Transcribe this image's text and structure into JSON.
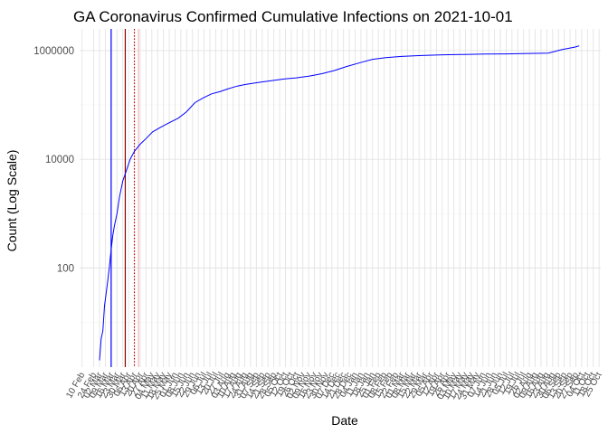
{
  "chart_data": {
    "type": "line",
    "title": "GA Coronavirus Confirmed Cumulative Infections on 2021-10-01",
    "xlabel": "Date",
    "ylabel": "Count (Log Scale)",
    "y_scale": "log10",
    "ylim": [
      1.5,
      2500000
    ],
    "y_ticks": [
      {
        "value": 100,
        "label": "100"
      },
      {
        "value": 10000,
        "label": "10000"
      },
      {
        "value": 1000000,
        "label": "1000000"
      }
    ],
    "xlim": [
      "2020-02-07",
      "2021-10-27"
    ],
    "x_ticks": [
      {
        "date": "2020-02-10",
        "label": "10 Feb"
      },
      {
        "date": "2020-02-24",
        "label": "24 Feb"
      },
      {
        "date": "2020-03-02",
        "label": "02 Mar"
      },
      {
        "date": "2020-03-09",
        "label": "09 Mar"
      },
      {
        "date": "2020-03-16",
        "label": "16 Mar"
      },
      {
        "date": "2020-03-23",
        "label": "23 Mar"
      },
      {
        "date": "2020-03-30",
        "label": "30 Mar"
      },
      {
        "date": "2020-04-06",
        "label": "06 Apr"
      },
      {
        "date": "2020-04-13",
        "label": "13 Apr"
      },
      {
        "date": "2020-04-20",
        "label": "20 Apr"
      },
      {
        "date": "2020-04-27",
        "label": "27 Apr"
      },
      {
        "date": "2020-05-04",
        "label": "04 May"
      },
      {
        "date": "2020-05-11",
        "label": "11 May"
      },
      {
        "date": "2020-05-18",
        "label": "18 May"
      },
      {
        "date": "2020-05-25",
        "label": "25 May"
      },
      {
        "date": "2020-06-01",
        "label": "01 Jun"
      },
      {
        "date": "2020-06-08",
        "label": "08 Jun"
      },
      {
        "date": "2020-06-15",
        "label": "15 Jun"
      },
      {
        "date": "2020-06-22",
        "label": "22 Jun"
      },
      {
        "date": "2020-06-29",
        "label": "29 Jun"
      },
      {
        "date": "2020-07-06",
        "label": "06 Jul"
      },
      {
        "date": "2020-07-13",
        "label": "13 Jul"
      },
      {
        "date": "2020-07-20",
        "label": "20 Jul"
      },
      {
        "date": "2020-07-27",
        "label": "27 Jul"
      },
      {
        "date": "2020-08-03",
        "label": "03 Aug"
      },
      {
        "date": "2020-08-10",
        "label": "10 Aug"
      },
      {
        "date": "2020-08-17",
        "label": "17 Aug"
      },
      {
        "date": "2020-08-24",
        "label": "24 Aug"
      },
      {
        "date": "2020-08-31",
        "label": "31 Aug"
      },
      {
        "date": "2020-09-07",
        "label": "07 Sep"
      },
      {
        "date": "2020-09-14",
        "label": "14 Sep"
      },
      {
        "date": "2020-09-21",
        "label": "21 Sep"
      },
      {
        "date": "2020-09-28",
        "label": "28 Sep"
      },
      {
        "date": "2020-10-05",
        "label": "05 Oct"
      },
      {
        "date": "2020-10-12",
        "label": "12 Oct"
      },
      {
        "date": "2020-10-19",
        "label": "19 Oct"
      },
      {
        "date": "2020-10-26",
        "label": "26 Oct"
      },
      {
        "date": "2020-11-02",
        "label": "02 Nov"
      },
      {
        "date": "2020-11-09",
        "label": "09 Nov"
      },
      {
        "date": "2020-11-16",
        "label": "16 Nov"
      },
      {
        "date": "2020-11-23",
        "label": "23 Nov"
      },
      {
        "date": "2020-11-30",
        "label": "30 Nov"
      },
      {
        "date": "2020-12-07",
        "label": "07 Dec"
      },
      {
        "date": "2020-12-14",
        "label": "14 Dec"
      },
      {
        "date": "2020-12-21",
        "label": "21 Dec"
      },
      {
        "date": "2020-12-28",
        "label": "28 Dec"
      },
      {
        "date": "2021-01-04",
        "label": "04 Jan"
      },
      {
        "date": "2021-01-11",
        "label": "11 Jan"
      },
      {
        "date": "2021-01-18",
        "label": "18 Jan"
      },
      {
        "date": "2021-01-25",
        "label": "25 Jan"
      },
      {
        "date": "2021-02-01",
        "label": "01 Feb"
      },
      {
        "date": "2021-02-08",
        "label": "08 Feb"
      },
      {
        "date": "2021-02-15",
        "label": "15 Feb"
      },
      {
        "date": "2021-02-22",
        "label": "22 Feb"
      },
      {
        "date": "2021-03-01",
        "label": "01 Mar"
      },
      {
        "date": "2021-03-08",
        "label": "08 Mar"
      },
      {
        "date": "2021-03-15",
        "label": "15 Mar"
      },
      {
        "date": "2021-03-22",
        "label": "22 Mar"
      },
      {
        "date": "2021-03-29",
        "label": "29 Mar"
      },
      {
        "date": "2021-04-05",
        "label": "05 Apr"
      },
      {
        "date": "2021-04-12",
        "label": "12 Apr"
      },
      {
        "date": "2021-04-19",
        "label": "19 Apr"
      },
      {
        "date": "2021-04-26",
        "label": "26 Apr"
      },
      {
        "date": "2021-05-03",
        "label": "03 May"
      },
      {
        "date": "2021-05-10",
        "label": "10 May"
      },
      {
        "date": "2021-05-17",
        "label": "17 May"
      },
      {
        "date": "2021-05-24",
        "label": "24 May"
      },
      {
        "date": "2021-05-31",
        "label": "31 May"
      },
      {
        "date": "2021-06-07",
        "label": "07 Jun"
      },
      {
        "date": "2021-06-14",
        "label": "14 Jun"
      },
      {
        "date": "2021-06-21",
        "label": "21 Jun"
      },
      {
        "date": "2021-06-28",
        "label": "28 Jun"
      },
      {
        "date": "2021-07-05",
        "label": "05 Jul"
      },
      {
        "date": "2021-07-12",
        "label": "12 Jul"
      },
      {
        "date": "2021-07-19",
        "label": "19 Jul"
      },
      {
        "date": "2021-07-26",
        "label": "26 Jul"
      },
      {
        "date": "2021-08-02",
        "label": "02 Aug"
      },
      {
        "date": "2021-08-09",
        "label": "09 Aug"
      },
      {
        "date": "2021-08-16",
        "label": "16 Aug"
      },
      {
        "date": "2021-08-23",
        "label": "23 Aug"
      },
      {
        "date": "2021-08-30",
        "label": "30 Aug"
      },
      {
        "date": "2021-09-06",
        "label": "06 Sep"
      },
      {
        "date": "2021-09-13",
        "label": "13 Sep"
      },
      {
        "date": "2021-09-20",
        "label": "20 Sep"
      },
      {
        "date": "2021-09-27",
        "label": "27 Sep"
      },
      {
        "date": "2021-10-04",
        "label": "04 Oct"
      },
      {
        "date": "2021-10-11",
        "label": "11 Oct"
      },
      {
        "date": "2021-10-18",
        "label": "18 Oct"
      },
      {
        "date": "2021-10-25",
        "label": "25 Oct"
      }
    ],
    "grid": true,
    "series": [
      {
        "color": "#0000ff",
        "x": [
          "2020-03-02",
          "2020-03-04",
          "2020-03-06",
          "2020-03-08",
          "2020-03-10",
          "2020-03-12",
          "2020-03-14",
          "2020-03-16",
          "2020-03-18",
          "2020-03-20",
          "2020-03-23",
          "2020-03-26",
          "2020-03-30",
          "2020-04-03",
          "2020-04-08",
          "2020-04-13",
          "2020-04-20",
          "2020-04-27",
          "2020-05-05",
          "2020-05-15",
          "2020-05-25",
          "2020-06-05",
          "2020-06-15",
          "2020-06-25",
          "2020-07-05",
          "2020-07-15",
          "2020-07-25",
          "2020-08-05",
          "2020-08-15",
          "2020-08-25",
          "2020-09-10",
          "2020-09-25",
          "2020-10-10",
          "2020-10-25",
          "2020-11-10",
          "2020-11-25",
          "2020-12-10",
          "2020-12-25",
          "2021-01-10",
          "2021-01-25",
          "2021-02-10",
          "2021-03-01",
          "2021-03-25",
          "2021-04-20",
          "2021-05-15",
          "2021-06-10",
          "2021-07-05",
          "2021-07-25",
          "2021-08-10",
          "2021-08-25",
          "2021-09-10",
          "2021-09-25",
          "2021-10-01"
        ],
        "values": [
          2,
          5,
          7,
          20,
          35,
          60,
          110,
          220,
          400,
          600,
          1000,
          2000,
          4000,
          6000,
          10000,
          14000,
          19000,
          24000,
          32000,
          39000,
          47000,
          57000,
          75000,
          110000,
          135000,
          160000,
          175000,
          200000,
          222000,
          238000,
          260000,
          280000,
          300000,
          315000,
          340000,
          375000,
          430000,
          510000,
          600000,
          690000,
          740000,
          780000,
          810000,
          835000,
          850000,
          865000,
          870000,
          880000,
          890000,
          900000,
          1040000,
          1150000,
          1220000
        ]
      }
    ],
    "vlines": [
      {
        "date": "2020-03-16",
        "color": "#0000ff",
        "style": "solid"
      },
      {
        "date": "2020-04-02",
        "color": "#8b0000",
        "style": "solid"
      },
      {
        "date": "2020-04-13",
        "color": "#cc0000",
        "style": "dotted"
      },
      {
        "date": "2020-04-18",
        "color": "#f2b6b6",
        "style": "solid"
      }
    ]
  }
}
